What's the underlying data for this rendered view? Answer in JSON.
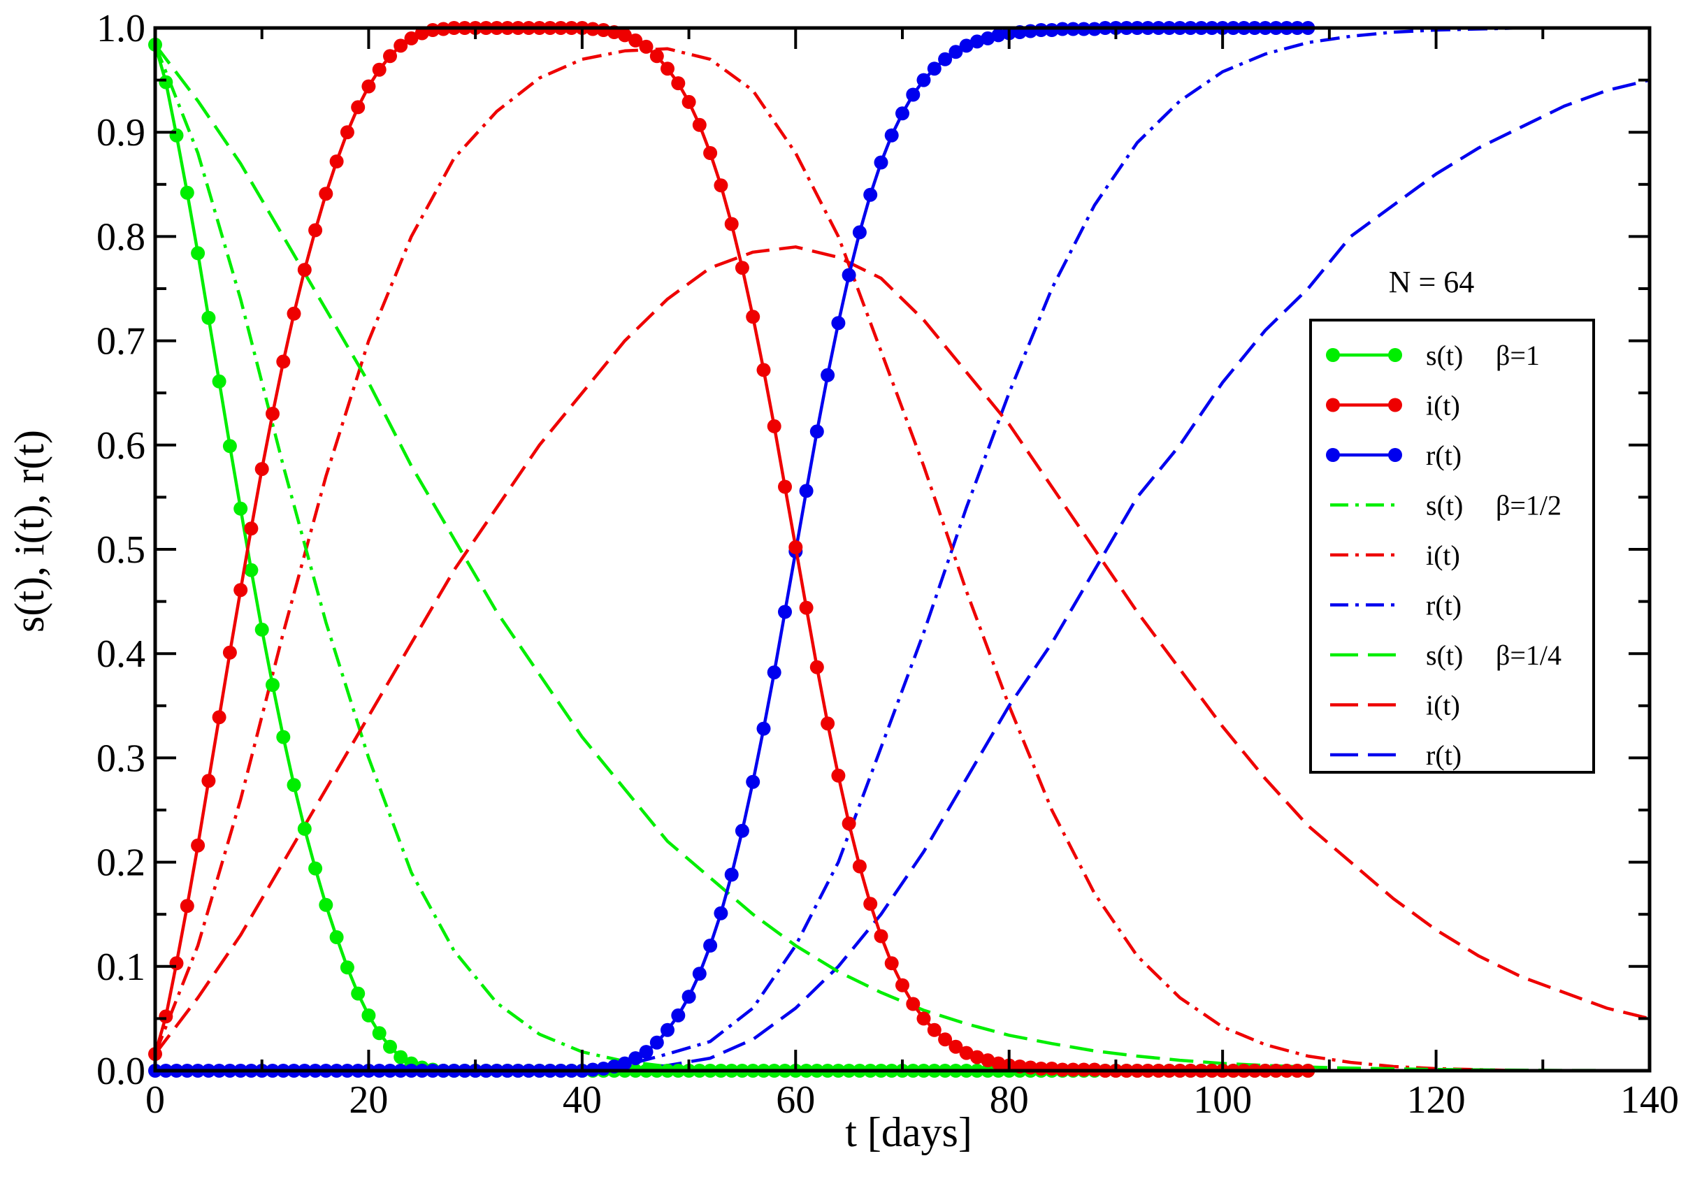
{
  "chart_data": {
    "type": "line",
    "title": "",
    "xlabel": "t [days]",
    "ylabel": "s(t), i(t), r(t)",
    "xlim": [
      0,
      140
    ],
    "ylim": [
      0,
      1.0
    ],
    "xticks": [
      "0",
      "20",
      "40",
      "60",
      "80",
      "100",
      "120",
      "140"
    ],
    "yticks": [
      "0.0",
      "0.1",
      "0.2",
      "0.3",
      "0.4",
      "0.5",
      "0.6",
      "0.7",
      "0.8",
      "0.9",
      "1.0"
    ],
    "annotation": "N = 64",
    "colors": {
      "s": "#00ee00",
      "i": "#ee0000",
      "r": "#0000ee"
    },
    "legend_position": "right",
    "series": [
      {
        "name": "s(t)",
        "group": "β=1",
        "var": "s",
        "style": "solid-markers",
        "x": [
          0,
          1,
          2,
          3,
          4,
          5,
          6,
          7,
          8,
          9,
          10,
          11,
          12,
          13,
          14,
          15,
          16,
          17,
          18,
          19,
          20,
          21,
          22,
          23,
          24,
          25,
          26,
          27,
          28,
          29,
          30,
          31,
          32,
          33,
          34,
          35,
          36,
          37,
          38,
          39,
          40,
          41,
          42,
          43,
          44,
          45,
          46,
          47,
          48,
          49,
          50,
          51,
          52,
          53,
          54,
          55,
          56,
          57,
          58,
          59,
          60,
          61,
          62,
          63,
          64,
          65,
          66,
          67,
          68,
          69,
          70,
          71,
          72,
          73,
          74,
          75,
          76,
          77,
          78,
          79,
          80,
          81,
          82,
          83,
          84,
          85,
          86,
          87,
          88,
          89,
          90,
          91,
          92,
          93,
          94,
          95,
          96,
          97,
          98,
          99,
          100,
          101,
          102,
          103,
          104,
          105,
          106,
          107,
          108
        ],
        "values": [
          0.984,
          0.948,
          0.897,
          0.842,
          0.784,
          0.722,
          0.661,
          0.599,
          0.539,
          0.48,
          0.423,
          0.37,
          0.32,
          0.274,
          0.232,
          0.194,
          0.159,
          0.128,
          0.099,
          0.074,
          0.053,
          0.036,
          0.023,
          0.013,
          0.007,
          0.003,
          0.001,
          0,
          0,
          0,
          0,
          0,
          0,
          0,
          0,
          0,
          0,
          0,
          0,
          0,
          0,
          0,
          0,
          0,
          0,
          0,
          0,
          0,
          0,
          0,
          0,
          0,
          0,
          0,
          0,
          0,
          0,
          0,
          0,
          0,
          0,
          0,
          0,
          0,
          0,
          0,
          0,
          0,
          0,
          0,
          0,
          0,
          0,
          0,
          0,
          0,
          0,
          0,
          0,
          0,
          0,
          0,
          0,
          0,
          0,
          0,
          0,
          0,
          0,
          0,
          0,
          0,
          0,
          0,
          0,
          0,
          0,
          0,
          0,
          0,
          0,
          0,
          0,
          0,
          0,
          0,
          0,
          0,
          0
        ]
      },
      {
        "name": "i(t)",
        "group": "",
        "var": "i",
        "style": "solid-markers",
        "x": [
          0,
          1,
          2,
          3,
          4,
          5,
          6,
          7,
          8,
          9,
          10,
          11,
          12,
          13,
          14,
          15,
          16,
          17,
          18,
          19,
          20,
          21,
          22,
          23,
          24,
          25,
          26,
          27,
          28,
          29,
          30,
          31,
          32,
          33,
          34,
          35,
          36,
          37,
          38,
          39,
          40,
          41,
          42,
          43,
          44,
          45,
          46,
          47,
          48,
          49,
          50,
          51,
          52,
          53,
          54,
          55,
          56,
          57,
          58,
          59,
          60,
          61,
          62,
          63,
          64,
          65,
          66,
          67,
          68,
          69,
          70,
          71,
          72,
          73,
          74,
          75,
          76,
          77,
          78,
          79,
          80,
          81,
          82,
          83,
          84,
          85,
          86,
          87,
          88,
          89,
          90,
          91,
          92,
          93,
          94,
          95,
          96,
          97,
          98,
          99,
          100,
          101,
          102,
          103,
          104,
          105,
          106,
          107,
          108
        ],
        "values": [
          0.016,
          0.052,
          0.103,
          0.158,
          0.216,
          0.278,
          0.339,
          0.401,
          0.461,
          0.52,
          0.577,
          0.63,
          0.68,
          0.726,
          0.768,
          0.806,
          0.841,
          0.872,
          0.9,
          0.924,
          0.944,
          0.96,
          0.973,
          0.983,
          0.99,
          0.995,
          0.998,
          0.999,
          1.0,
          1.0,
          1.0,
          1.0,
          1.0,
          1.0,
          1.0,
          1.0,
          1.0,
          1.0,
          1.0,
          1.0,
          1.0,
          0.999,
          0.998,
          0.996,
          0.993,
          0.988,
          0.982,
          0.973,
          0.961,
          0.947,
          0.929,
          0.907,
          0.88,
          0.849,
          0.812,
          0.77,
          0.723,
          0.672,
          0.618,
          0.56,
          0.502,
          0.444,
          0.387,
          0.333,
          0.283,
          0.237,
          0.196,
          0.16,
          0.129,
          0.103,
          0.082,
          0.064,
          0.05,
          0.039,
          0.03,
          0.023,
          0.017,
          0.013,
          0.01,
          0.007,
          0.005,
          0.004,
          0.003,
          0.002,
          0.002,
          0.001,
          0.001,
          0.001,
          0.001,
          0,
          0,
          0,
          0,
          0,
          0,
          0,
          0,
          0,
          0,
          0,
          0,
          0,
          0,
          0,
          0,
          0,
          0,
          0,
          0
        ]
      },
      {
        "name": "r(t)",
        "group": "",
        "var": "r",
        "style": "solid-markers",
        "x": [
          0,
          1,
          2,
          3,
          4,
          5,
          6,
          7,
          8,
          9,
          10,
          11,
          12,
          13,
          14,
          15,
          16,
          17,
          18,
          19,
          20,
          21,
          22,
          23,
          24,
          25,
          26,
          27,
          28,
          29,
          30,
          31,
          32,
          33,
          34,
          35,
          36,
          37,
          38,
          39,
          40,
          41,
          42,
          43,
          44,
          45,
          46,
          47,
          48,
          49,
          50,
          51,
          52,
          53,
          54,
          55,
          56,
          57,
          58,
          59,
          60,
          61,
          62,
          63,
          64,
          65,
          66,
          67,
          68,
          69,
          70,
          71,
          72,
          73,
          74,
          75,
          76,
          77,
          78,
          79,
          80,
          81,
          82,
          83,
          84,
          85,
          86,
          87,
          88,
          89,
          90,
          91,
          92,
          93,
          94,
          95,
          96,
          97,
          98,
          99,
          100,
          101,
          102,
          103,
          104,
          105,
          106,
          107,
          108
        ],
        "values": [
          0,
          0,
          0,
          0,
          0,
          0,
          0,
          0,
          0,
          0,
          0,
          0,
          0,
          0,
          0,
          0,
          0,
          0,
          0,
          0,
          0,
          0,
          0,
          0,
          0,
          0,
          0,
          0,
          0,
          0,
          0,
          0,
          0,
          0,
          0,
          0,
          0,
          0,
          0,
          0,
          0,
          0.001,
          0.002,
          0.004,
          0.007,
          0.012,
          0.018,
          0.027,
          0.039,
          0.053,
          0.071,
          0.093,
          0.12,
          0.151,
          0.188,
          0.23,
          0.277,
          0.328,
          0.382,
          0.44,
          0.498,
          0.556,
          0.613,
          0.667,
          0.717,
          0.763,
          0.804,
          0.84,
          0.871,
          0.897,
          0.918,
          0.936,
          0.95,
          0.961,
          0.97,
          0.977,
          0.983,
          0.987,
          0.99,
          0.993,
          0.995,
          0.996,
          0.997,
          0.998,
          0.998,
          0.999,
          0.999,
          0.999,
          0.999,
          1.0,
          1.0,
          1.0,
          1.0,
          1.0,
          1.0,
          1.0,
          1.0,
          1.0,
          1.0,
          1.0,
          1.0,
          1.0,
          1.0,
          1.0,
          1.0,
          1.0,
          1.0,
          1.0,
          1.0
        ]
      },
      {
        "name": "s(t)",
        "group": "β=1/2",
        "var": "s",
        "style": "dash-dot",
        "x": [
          0,
          4,
          8,
          12,
          16,
          20,
          24,
          28,
          32,
          36,
          40,
          44,
          48,
          52,
          56,
          60,
          64,
          68,
          72,
          76,
          80,
          84,
          88,
          92,
          96,
          100,
          104,
          108,
          112,
          116,
          120,
          124,
          128,
          132,
          136,
          140
        ],
        "values": [
          0.984,
          0.88,
          0.74,
          0.58,
          0.43,
          0.3,
          0.19,
          0.115,
          0.065,
          0.035,
          0.018,
          0.009,
          0.004,
          0.002,
          0.001,
          0,
          0,
          0,
          0,
          0,
          0,
          0,
          0,
          0,
          0,
          0,
          0,
          0,
          0,
          0,
          0,
          0,
          0,
          0,
          0,
          0
        ]
      },
      {
        "name": "i(t)",
        "group": "",
        "var": "i",
        "style": "dash-dot",
        "x": [
          0,
          4,
          8,
          12,
          16,
          20,
          24,
          28,
          32,
          36,
          40,
          44,
          48,
          52,
          56,
          60,
          64,
          68,
          72,
          76,
          80,
          84,
          88,
          92,
          96,
          100,
          104,
          108,
          112,
          116,
          120,
          124,
          128,
          132,
          136,
          140
        ],
        "values": [
          0.016,
          0.12,
          0.26,
          0.42,
          0.57,
          0.7,
          0.8,
          0.875,
          0.92,
          0.952,
          0.97,
          0.978,
          0.98,
          0.97,
          0.94,
          0.88,
          0.8,
          0.69,
          0.58,
          0.46,
          0.35,
          0.25,
          0.17,
          0.11,
          0.07,
          0.042,
          0.025,
          0.014,
          0.008,
          0.004,
          0.002,
          0.001,
          0,
          0,
          0,
          0
        ]
      },
      {
        "name": "r(t)",
        "group": "",
        "var": "r",
        "style": "dash-dot",
        "x": [
          0,
          4,
          8,
          12,
          16,
          20,
          24,
          28,
          32,
          36,
          40,
          44,
          48,
          52,
          56,
          60,
          64,
          68,
          72,
          76,
          80,
          84,
          88,
          92,
          96,
          100,
          104,
          108,
          112,
          116,
          120,
          124,
          128,
          132,
          136,
          140
        ],
        "values": [
          0,
          0,
          0,
          0,
          0,
          0,
          0,
          0,
          0,
          0,
          0,
          0.005,
          0.016,
          0.028,
          0.06,
          0.12,
          0.2,
          0.31,
          0.42,
          0.54,
          0.65,
          0.75,
          0.83,
          0.89,
          0.93,
          0.958,
          0.975,
          0.986,
          0.992,
          0.996,
          0.998,
          0.999,
          1.0,
          1.0,
          1.0,
          1.0
        ]
      },
      {
        "name": "s(t)",
        "group": "β=1/4",
        "var": "s",
        "style": "dash",
        "x": [
          0,
          4,
          8,
          12,
          16,
          20,
          24,
          28,
          32,
          36,
          40,
          44,
          48,
          52,
          56,
          60,
          64,
          68,
          72,
          76,
          80,
          84,
          88,
          92,
          96,
          100,
          104,
          108,
          112,
          116,
          120,
          124,
          128,
          132,
          136,
          140
        ],
        "values": [
          0.984,
          0.93,
          0.87,
          0.8,
          0.73,
          0.66,
          0.58,
          0.51,
          0.44,
          0.38,
          0.32,
          0.27,
          0.22,
          0.185,
          0.15,
          0.12,
          0.095,
          0.075,
          0.058,
          0.045,
          0.034,
          0.026,
          0.019,
          0.014,
          0.01,
          0.007,
          0.005,
          0.0035,
          0.0025,
          0.0018,
          0.0012,
          0.0008,
          0.0005,
          0.0003,
          0.0002,
          0.0001
        ]
      },
      {
        "name": "i(t)",
        "group": "",
        "var": "i",
        "style": "dash",
        "x": [
          0,
          4,
          8,
          12,
          16,
          20,
          24,
          28,
          32,
          36,
          40,
          44,
          48,
          52,
          56,
          60,
          64,
          68,
          72,
          76,
          80,
          84,
          88,
          92,
          96,
          100,
          104,
          108,
          112,
          116,
          120,
          124,
          128,
          132,
          136,
          140
        ],
        "values": [
          0.016,
          0.07,
          0.13,
          0.2,
          0.27,
          0.34,
          0.41,
          0.48,
          0.54,
          0.6,
          0.65,
          0.7,
          0.74,
          0.77,
          0.785,
          0.79,
          0.78,
          0.76,
          0.72,
          0.67,
          0.62,
          0.56,
          0.5,
          0.44,
          0.385,
          0.33,
          0.28,
          0.235,
          0.2,
          0.165,
          0.135,
          0.11,
          0.09,
          0.075,
          0.06,
          0.05
        ]
      },
      {
        "name": "r(t)",
        "group": "",
        "var": "r",
        "style": "dash",
        "x": [
          0,
          4,
          8,
          12,
          16,
          20,
          24,
          28,
          32,
          36,
          40,
          44,
          48,
          52,
          56,
          60,
          64,
          68,
          72,
          76,
          80,
          84,
          88,
          92,
          96,
          100,
          104,
          108,
          112,
          116,
          120,
          124,
          128,
          132,
          136,
          140
        ],
        "values": [
          0,
          0,
          0,
          0,
          0,
          0,
          0,
          0,
          0,
          0,
          0,
          0,
          0.005,
          0.012,
          0.03,
          0.06,
          0.1,
          0.15,
          0.21,
          0.28,
          0.35,
          0.41,
          0.48,
          0.55,
          0.6,
          0.66,
          0.71,
          0.75,
          0.8,
          0.83,
          0.86,
          0.885,
          0.905,
          0.925,
          0.94,
          0.95
        ]
      }
    ]
  }
}
